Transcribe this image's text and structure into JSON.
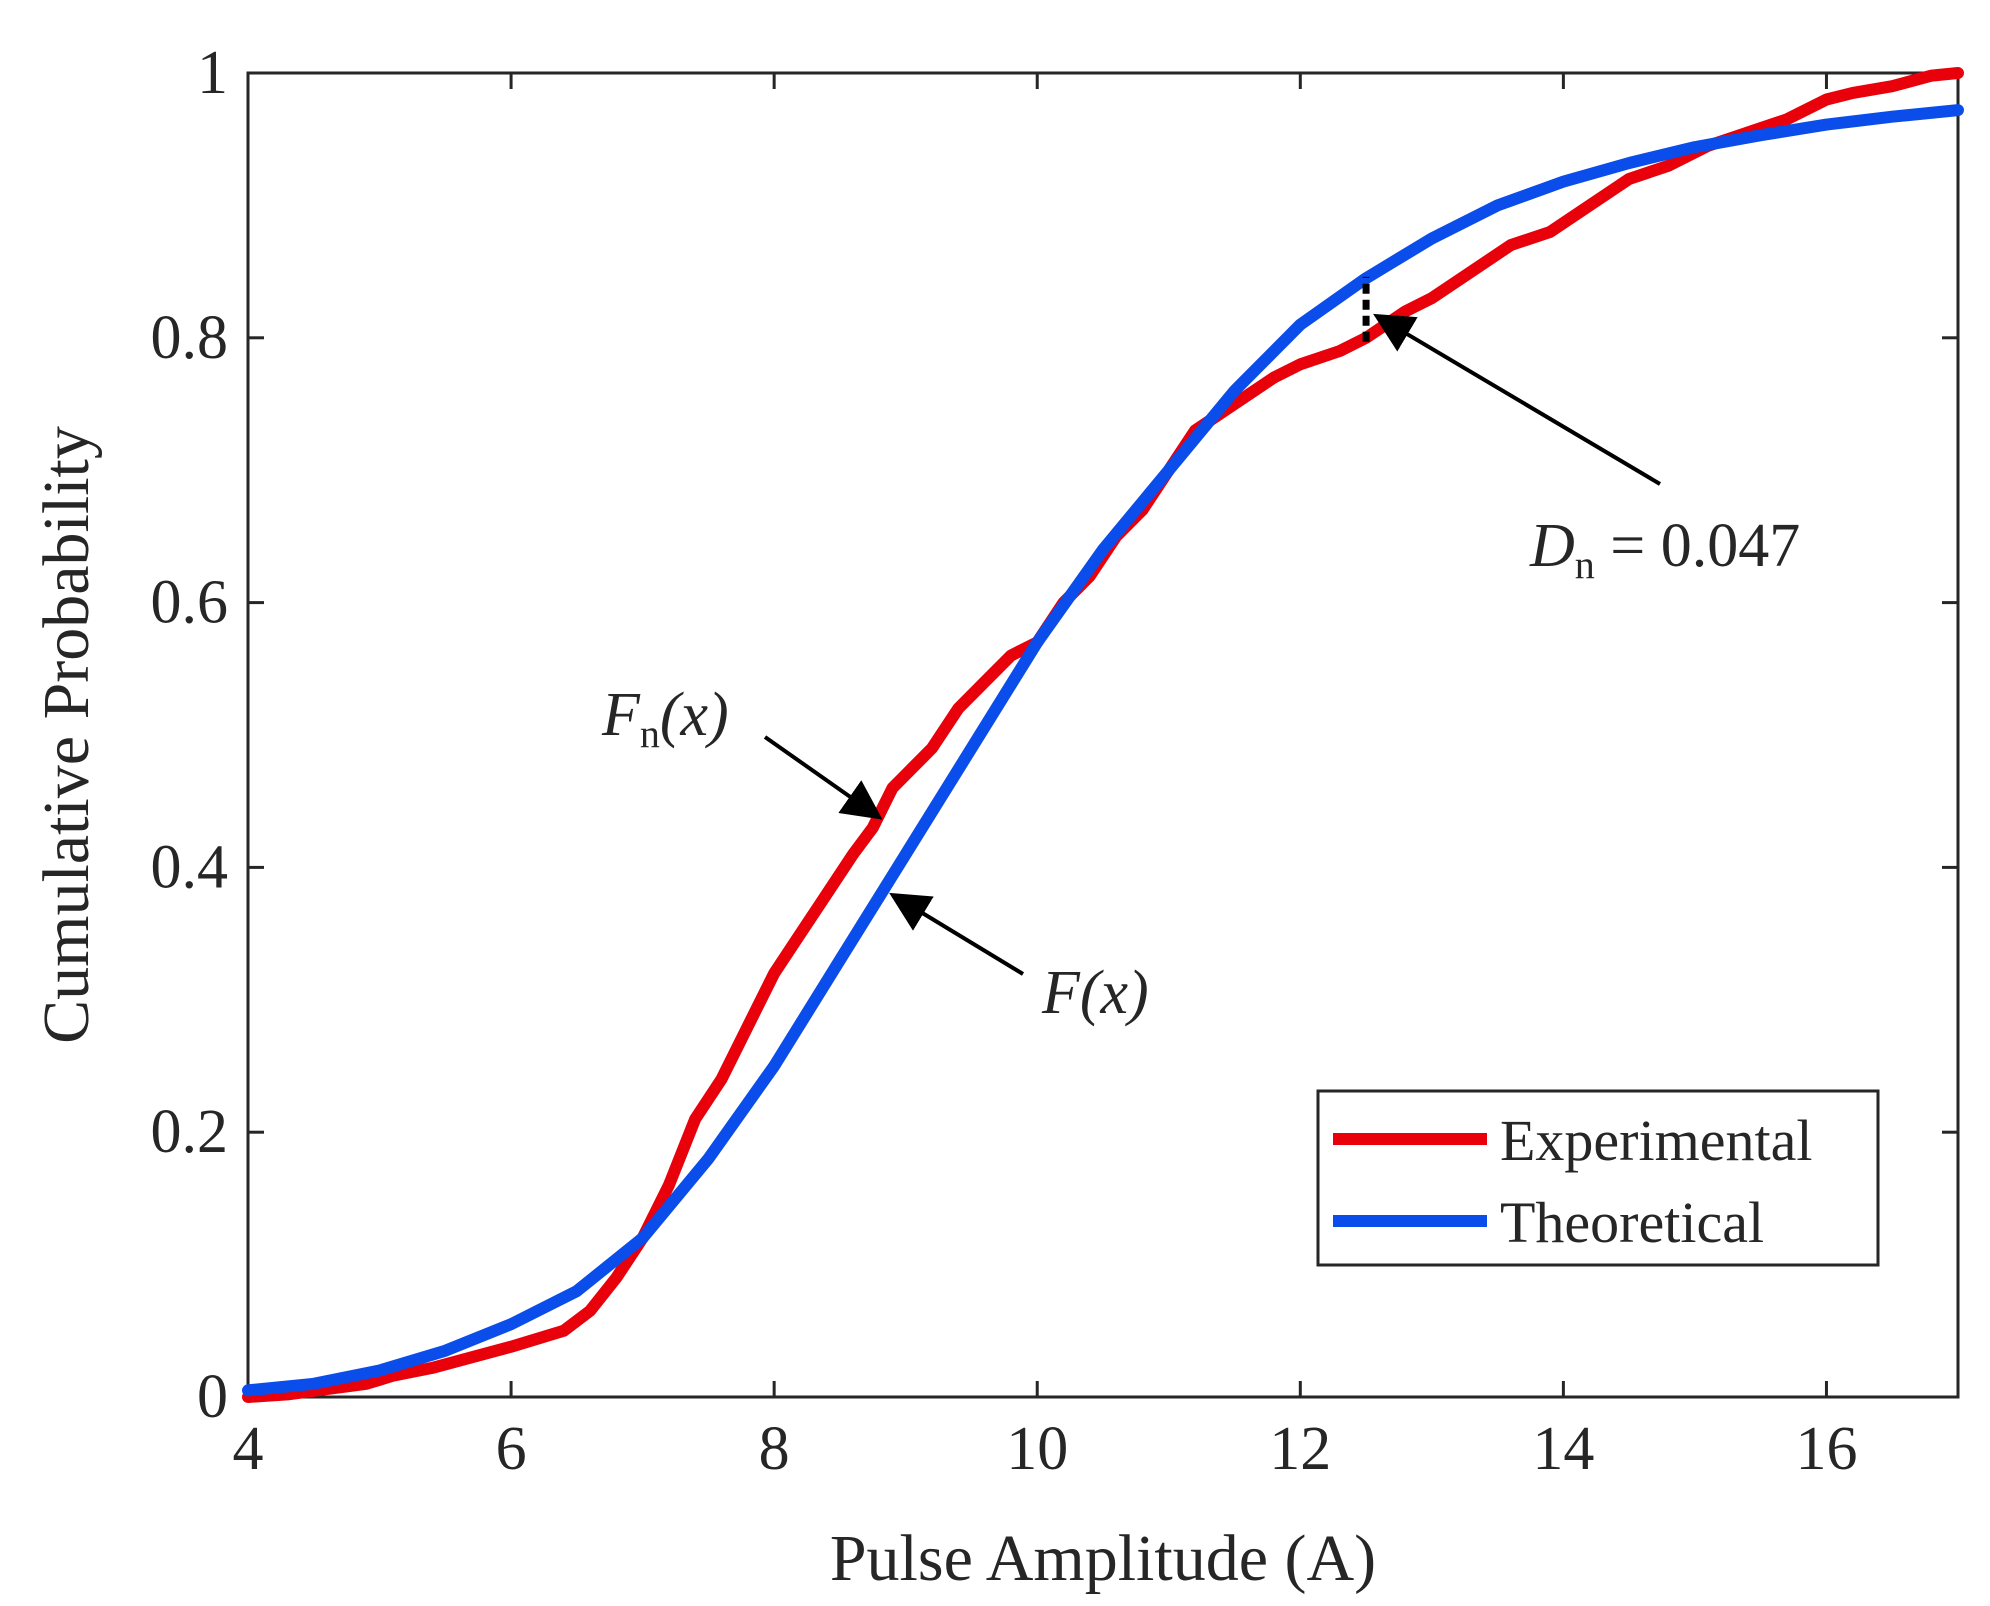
{
  "chart_data": {
    "type": "line",
    "xlabel": "Pulse Amplitude (A)",
    "ylabel": "Cumulative Probability",
    "xlim": [
      4,
      17
    ],
    "ylim": [
      0,
      1
    ],
    "xticks": [
      4,
      6,
      8,
      10,
      12,
      14,
      16
    ],
    "yticks": [
      0,
      0.2,
      0.4,
      0.6,
      0.8,
      1
    ],
    "x_tick_labels": [
      "4",
      "6",
      "8",
      "10",
      "12",
      "14",
      "16"
    ],
    "y_tick_labels": [
      "0",
      "0.2",
      "0.4",
      "0.6",
      "0.8",
      "1"
    ],
    "grid": false,
    "legend_position": "bottom-right",
    "series": [
      {
        "name": "Experimental",
        "color": "#e8000b",
        "x": [
          4.0,
          4.3,
          4.6,
          4.9,
          5.1,
          5.4,
          5.7,
          6.0,
          6.2,
          6.4,
          6.6,
          6.8,
          7.0,
          7.2,
          7.4,
          7.6,
          7.8,
          8.0,
          8.2,
          8.4,
          8.6,
          8.75,
          8.9,
          9.0,
          9.2,
          9.4,
          9.6,
          9.8,
          10.0,
          10.2,
          10.4,
          10.6,
          10.8,
          11.0,
          11.2,
          11.5,
          11.8,
          12.0,
          12.3,
          12.5,
          12.8,
          13.0,
          13.3,
          13.6,
          13.9,
          14.2,
          14.5,
          14.8,
          15.1,
          15.4,
          15.7,
          16.0,
          16.2,
          16.5,
          16.8,
          17.0
        ],
        "y": [
          0.0,
          0.002,
          0.006,
          0.01,
          0.016,
          0.022,
          0.03,
          0.038,
          0.044,
          0.05,
          0.065,
          0.09,
          0.12,
          0.16,
          0.21,
          0.24,
          0.28,
          0.32,
          0.35,
          0.38,
          0.41,
          0.43,
          0.46,
          0.47,
          0.49,
          0.52,
          0.54,
          0.56,
          0.57,
          0.6,
          0.62,
          0.65,
          0.67,
          0.7,
          0.73,
          0.75,
          0.77,
          0.78,
          0.79,
          0.8,
          0.82,
          0.83,
          0.85,
          0.87,
          0.88,
          0.9,
          0.92,
          0.93,
          0.945,
          0.955,
          0.965,
          0.98,
          0.985,
          0.99,
          0.998,
          1.0
        ]
      },
      {
        "name": "Theoretical",
        "color": "#0a4dea",
        "x": [
          4.0,
          4.5,
          5.0,
          5.5,
          6.0,
          6.5,
          7.0,
          7.5,
          8.0,
          8.5,
          9.0,
          9.5,
          10.0,
          10.5,
          11.0,
          11.5,
          12.0,
          12.5,
          13.0,
          13.5,
          14.0,
          14.5,
          15.0,
          15.5,
          16.0,
          16.5,
          17.0
        ],
        "y": [
          0.005,
          0.01,
          0.02,
          0.035,
          0.055,
          0.08,
          0.12,
          0.18,
          0.25,
          0.33,
          0.41,
          0.49,
          0.57,
          0.64,
          0.7,
          0.76,
          0.81,
          0.845,
          0.875,
          0.9,
          0.918,
          0.932,
          0.944,
          0.953,
          0.961,
          0.967,
          0.972
        ]
      }
    ],
    "annotations": [
      {
        "text": "D",
        "subscript": "n",
        "suffix": " = 0.047",
        "points_to": {
          "x": 12.5,
          "y": 0.82
        }
      },
      {
        "text": "F",
        "subscript": "n",
        "suffix": "(x)",
        "points_to": {
          "x": 8.8,
          "y": 0.44
        }
      },
      {
        "text": "F",
        "subscript": "",
        "suffix": "(x)",
        "points_to": {
          "x": 8.9,
          "y": 0.38
        }
      }
    ],
    "dn_marker": {
      "x": 12.5,
      "y_from": 0.797,
      "y_to": 0.846
    }
  }
}
